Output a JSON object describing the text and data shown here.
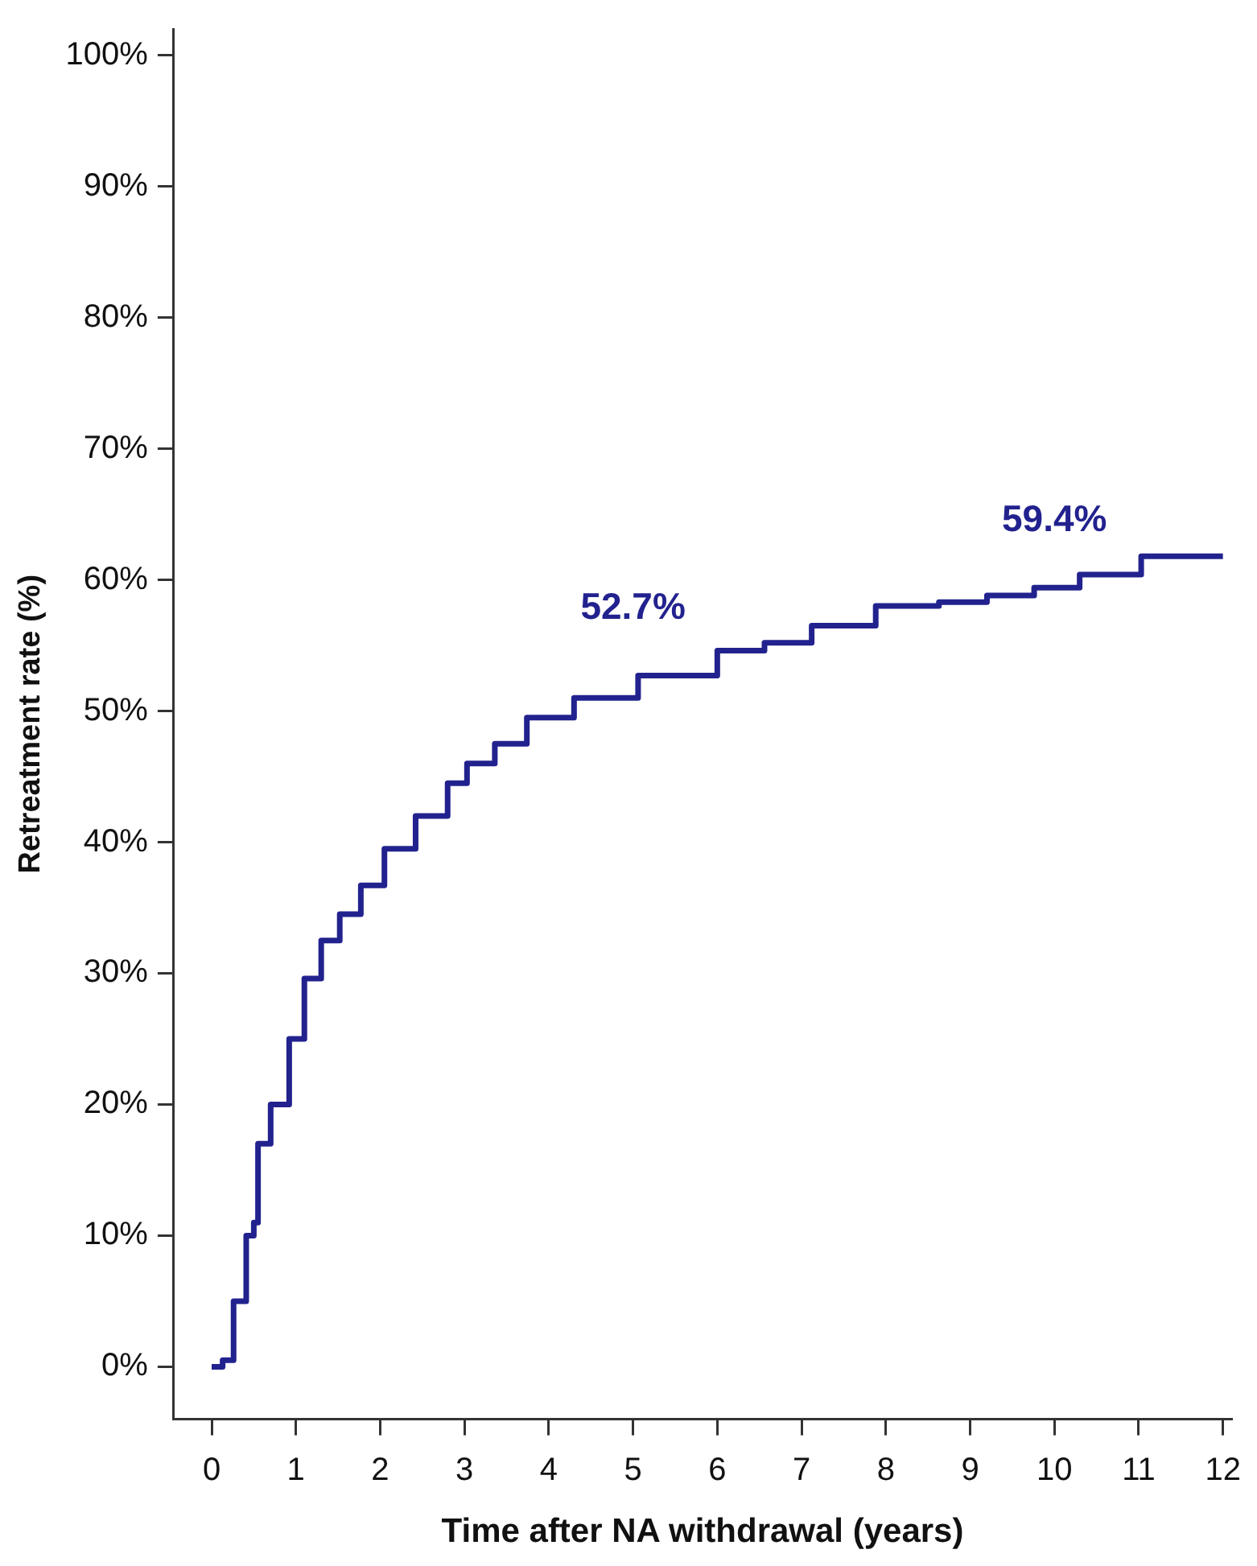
{
  "chart_data": {
    "type": "step",
    "xlabel": "Time after NA withdrawal (years)",
    "ylabel": "Retreatment rate (%)",
    "x": [
      0,
      0.13,
      0.26,
      0.41,
      0.5,
      0.55,
      0.7,
      0.92,
      1.1,
      1.3,
      1.52,
      1.77,
      2.05,
      2.42,
      2.8,
      3.03,
      3.36,
      3.74,
      4.3,
      5.06,
      6.0,
      6.56,
      7.12,
      7.88,
      8.63,
      9.2,
      9.76,
      10.3,
      11.03,
      12
    ],
    "series": [
      {
        "color": "#22228f",
        "values": [
          0,
          0.5,
          5,
          10,
          11,
          17,
          20,
          25,
          29.6,
          32.5,
          34.5,
          36.7,
          39.5,
          42,
          44.5,
          46,
          47.5,
          49.5,
          51,
          52.7,
          54.6,
          55.2,
          56.5,
          58,
          58.3,
          58.8,
          59.4,
          60.4,
          61.8,
          61.8
        ]
      }
    ],
    "xlim": [
      -0.45,
      12.1
    ],
    "ylim": [
      -4,
      102
    ],
    "xticks": [
      0,
      1,
      2,
      3,
      4,
      5,
      6,
      7,
      8,
      9,
      10,
      11,
      12
    ],
    "yticks": [
      {
        "value": 0,
        "label": "0%"
      },
      {
        "value": 10,
        "label": "10%"
      },
      {
        "value": 20,
        "label": "20%"
      },
      {
        "value": 30,
        "label": "30%"
      },
      {
        "value": 40,
        "label": "40%"
      },
      {
        "value": 50,
        "label": "50%"
      },
      {
        "value": 60,
        "label": "60%"
      },
      {
        "value": 70,
        "label": "70%"
      },
      {
        "value": 80,
        "label": "80%"
      },
      {
        "value": 90,
        "label": "90%"
      },
      {
        "value": 100,
        "label": "100%"
      }
    ],
    "annotations": [
      {
        "text": "52.7%",
        "x": 5,
        "y": 52.7
      },
      {
        "text": "59.4%",
        "x": 10,
        "y": 59.4
      }
    ],
    "grid": false,
    "legend": false,
    "marker": "none",
    "line_style": "solid"
  }
}
